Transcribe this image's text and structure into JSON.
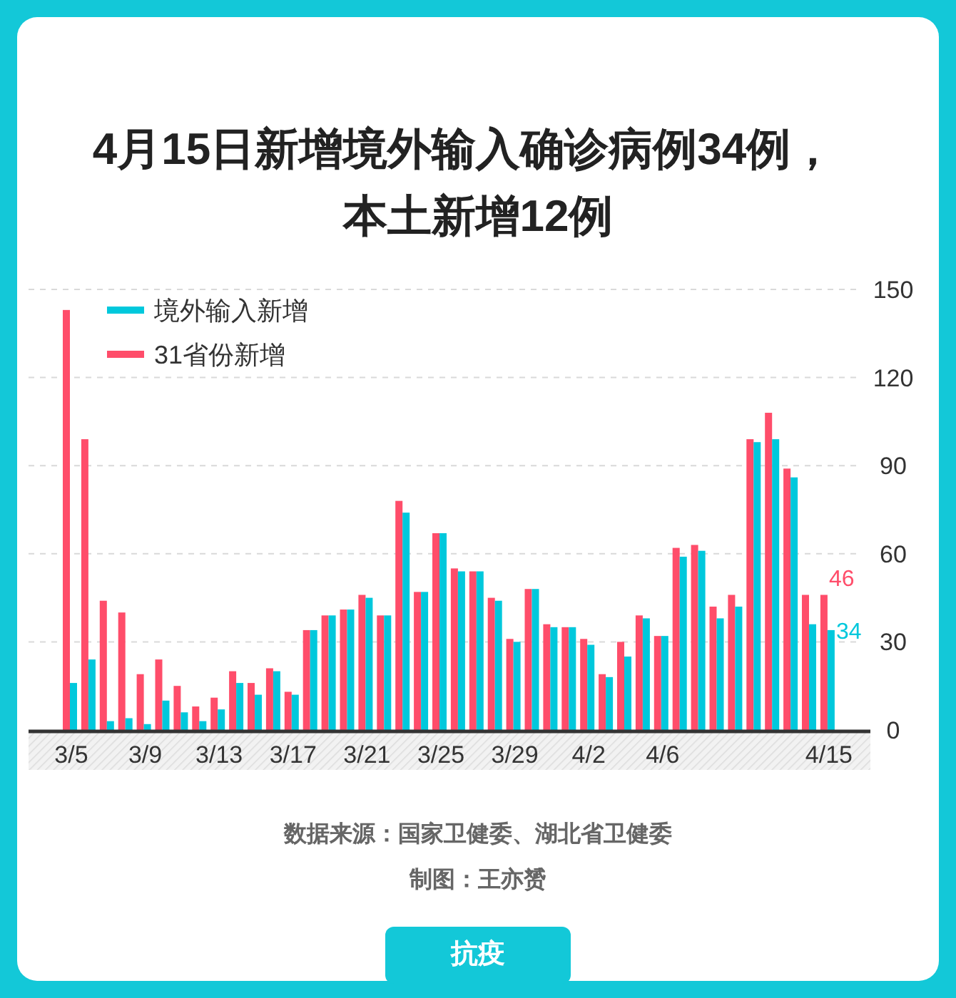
{
  "chart_data": {
    "type": "bar",
    "title": "4月15日新增境外输入确诊病例34例，本土新增12例",
    "categories": [
      "3/5",
      null,
      null,
      null,
      "3/9",
      null,
      null,
      null,
      "3/13",
      null,
      null,
      null,
      "3/17",
      null,
      null,
      null,
      "3/21",
      null,
      null,
      null,
      "3/25",
      null,
      null,
      null,
      "3/29",
      null,
      null,
      null,
      "4/2",
      null,
      null,
      null,
      "4/6",
      null,
      null,
      null,
      null,
      null,
      null,
      null,
      null,
      "4/15"
    ],
    "series": [
      {
        "name": "31省份新增",
        "color": "#ff4d6a",
        "values": [
          143,
          99,
          44,
          40,
          19,
          24,
          15,
          8,
          11,
          20,
          16,
          21,
          13,
          34,
          39,
          41,
          46,
          39,
          78,
          47,
          67,
          55,
          54,
          45,
          31,
          48,
          36,
          35,
          31,
          19,
          30,
          39,
          32,
          62,
          63,
          42,
          46,
          99,
          108,
          89,
          46,
          46
        ],
        "value_labels": [
          null,
          null,
          null,
          null,
          null,
          null,
          null,
          null,
          null,
          null,
          null,
          null,
          null,
          null,
          null,
          null,
          null,
          null,
          null,
          null,
          null,
          null,
          null,
          null,
          null,
          null,
          null,
          null,
          null,
          null,
          null,
          null,
          null,
          null,
          null,
          null,
          null,
          null,
          null,
          null,
          null,
          "46"
        ]
      },
      {
        "name": "境外输入新增",
        "color": "#00c8dc",
        "values": [
          16,
          24,
          3,
          4,
          2,
          10,
          6,
          3,
          7,
          16,
          12,
          20,
          12,
          34,
          39,
          41,
          45,
          39,
          74,
          47,
          67,
          54,
          54,
          44,
          30,
          48,
          35,
          35,
          29,
          18,
          25,
          38,
          32,
          59,
          61,
          38,
          42,
          98,
          99,
          86,
          36,
          34
        ],
        "value_labels": [
          null,
          null,
          null,
          null,
          null,
          null,
          null,
          null,
          null,
          null,
          null,
          null,
          null,
          null,
          null,
          null,
          null,
          null,
          null,
          null,
          null,
          null,
          null,
          null,
          null,
          null,
          null,
          null,
          null,
          null,
          null,
          null,
          null,
          null,
          null,
          null,
          null,
          null,
          null,
          null,
          null,
          "34"
        ]
      }
    ],
    "ylim": [
      0,
      150
    ],
    "yticks": [
      0,
      30,
      60,
      90,
      120,
      150
    ],
    "grid": "y",
    "legend": "top left",
    "annotations": [
      "数据来源：国家卫健委、湖北省卫健委",
      "制图：王亦赟",
      "抗疫"
    ]
  }
}
